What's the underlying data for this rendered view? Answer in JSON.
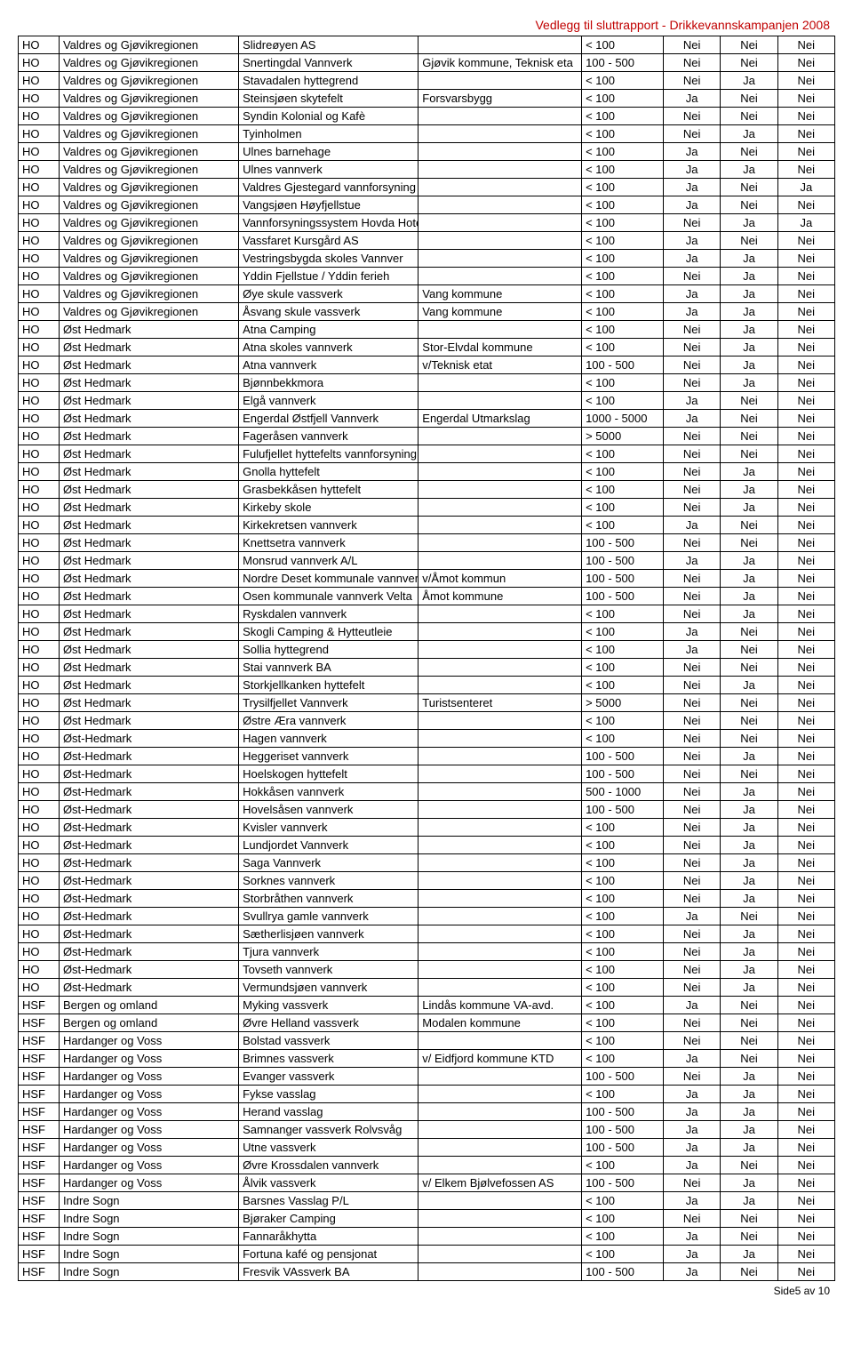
{
  "header": "Vedlegg til sluttrapport -  Drikkevannskampanjen 2008",
  "footer": "Side5 av 10",
  "rows": [
    [
      "HO",
      "Valdres og Gjøvikregionen",
      "Slidreøyen AS",
      "",
      "< 100",
      "Nei",
      "Nei",
      "Nei"
    ],
    [
      "HO",
      "Valdres og Gjøvikregionen",
      "Snertingdal Vannverk",
      "Gjøvik kommune, Teknisk eta",
      "100 - 500",
      "Nei",
      "Nei",
      "Nei"
    ],
    [
      "HO",
      "Valdres og Gjøvikregionen",
      "Stavadalen hyttegrend",
      "",
      "< 100",
      "Nei",
      "Ja",
      "Nei"
    ],
    [
      "HO",
      "Valdres og Gjøvikregionen",
      "Steinsjøen skytefelt",
      "Forsvarsbygg",
      "< 100",
      "Ja",
      "Nei",
      "Nei"
    ],
    [
      "HO",
      "Valdres og Gjøvikregionen",
      "Syndin Kolonial og Kafè",
      "",
      "< 100",
      "Nei",
      "Nei",
      "Nei"
    ],
    [
      "HO",
      "Valdres og Gjøvikregionen",
      "Tyinholmen",
      "",
      "< 100",
      "Nei",
      "Ja",
      "Nei"
    ],
    [
      "HO",
      "Valdres og Gjøvikregionen",
      "Ulnes barnehage",
      "",
      "< 100",
      "Ja",
      "Nei",
      "Nei"
    ],
    [
      "HO",
      "Valdres og Gjøvikregionen",
      "Ulnes vannverk",
      "",
      "< 100",
      "Ja",
      "Ja",
      "Nei"
    ],
    [
      "HO",
      "Valdres og Gjøvikregionen",
      "Valdres Gjestegard vannforsyning",
      "",
      "< 100",
      "Ja",
      "Nei",
      "Ja"
    ],
    [
      "HO",
      "Valdres og Gjøvikregionen",
      "Vangsjøen Høyfjellstue",
      "",
      "< 100",
      "Ja",
      "Nei",
      "Nei"
    ],
    [
      "HO",
      "Valdres og Gjøvikregionen",
      "Vannforsyningssystem Hovda Hotell",
      "",
      "< 100",
      "Nei",
      "Ja",
      "Ja"
    ],
    [
      "HO",
      "Valdres og Gjøvikregionen",
      "Vassfaret Kursgård AS",
      "",
      "< 100",
      "Ja",
      "Nei",
      "Nei"
    ],
    [
      "HO",
      "Valdres og Gjøvikregionen",
      "Vestringsbygda skoles Vannver",
      "",
      "< 100",
      "Ja",
      "Ja",
      "Nei"
    ],
    [
      "HO",
      "Valdres og Gjøvikregionen",
      "Yddin Fjellstue / Yddin ferieh",
      "",
      "< 100",
      "Nei",
      "Ja",
      "Nei"
    ],
    [
      "HO",
      "Valdres og Gjøvikregionen",
      "Øye skule vassverk",
      "Vang kommune",
      "< 100",
      "Ja",
      "Ja",
      "Nei"
    ],
    [
      "HO",
      "Valdres og Gjøvikregionen",
      "Åsvang skule vassverk",
      "Vang kommune",
      "< 100",
      "Ja",
      "Ja",
      "Nei"
    ],
    [
      "HO",
      "Øst Hedmark",
      "Atna Camping",
      "",
      "< 100",
      "Nei",
      "Ja",
      "Nei"
    ],
    [
      "HO",
      "Øst Hedmark",
      "Atna skoles vannverk",
      "Stor-Elvdal kommune",
      "< 100",
      "Nei",
      "Ja",
      "Nei"
    ],
    [
      "HO",
      "Øst Hedmark",
      "Atna vannverk",
      "v/Teknisk etat",
      "100 - 500",
      "Nei",
      "Ja",
      "Nei"
    ],
    [
      "HO",
      "Øst Hedmark",
      "Bjønnbekkmora",
      "",
      "< 100",
      "Nei",
      "Ja",
      "Nei"
    ],
    [
      "HO",
      "Øst Hedmark",
      "Elgå vannverk",
      "",
      "< 100",
      "Ja",
      "Nei",
      "Nei"
    ],
    [
      "HO",
      "Øst Hedmark",
      "Engerdal Østfjell Vannverk",
      "Engerdal Utmarkslag",
      "1000 - 5000",
      "Ja",
      "Nei",
      "Nei"
    ],
    [
      "HO",
      "Øst Hedmark",
      "Fageråsen vannverk",
      "",
      "> 5000",
      "Nei",
      "Nei",
      "Nei"
    ],
    [
      "HO",
      "Øst Hedmark",
      "Fulufjellet hyttefelts vannforsyning",
      "",
      "< 100",
      "Nei",
      "Nei",
      "Nei"
    ],
    [
      "HO",
      "Øst Hedmark",
      "Gnolla hyttefelt",
      "",
      "< 100",
      "Nei",
      "Ja",
      "Nei"
    ],
    [
      "HO",
      "Øst Hedmark",
      "Grasbekkåsen hyttefelt",
      "",
      "< 100",
      "Nei",
      "Ja",
      "Nei"
    ],
    [
      "HO",
      "Øst Hedmark",
      "Kirkeby skole",
      "",
      "< 100",
      "Nei",
      "Ja",
      "Nei"
    ],
    [
      "HO",
      "Øst Hedmark",
      "Kirkekretsen vannverk",
      "",
      "< 100",
      "Ja",
      "Nei",
      "Nei"
    ],
    [
      "HO",
      "Øst Hedmark",
      "Knettsetra vannverk",
      "",
      "100 - 500",
      "Nei",
      "Nei",
      "Nei"
    ],
    [
      "HO",
      "Øst Hedmark",
      "Monsrud vannverk A/L",
      "",
      "100 - 500",
      "Ja",
      "Ja",
      "Nei"
    ],
    [
      "HO",
      "Øst Hedmark",
      "Nordre Deset kommunale vannver",
      "v/Åmot kommun",
      "100 - 500",
      "Nei",
      "Ja",
      "Nei"
    ],
    [
      "HO",
      "Øst Hedmark",
      "Osen kommunale vannverk Velta",
      "Åmot kommune",
      "100 - 500",
      "Nei",
      "Ja",
      "Nei"
    ],
    [
      "HO",
      "Øst Hedmark",
      "Ryskdalen vannverk",
      "",
      "< 100",
      "Nei",
      "Ja",
      "Nei"
    ],
    [
      "HO",
      "Øst Hedmark",
      "Skogli Camping & Hytteutleie",
      "",
      "< 100",
      "Ja",
      "Nei",
      "Nei"
    ],
    [
      "HO",
      "Øst Hedmark",
      "Sollia hyttegrend",
      "",
      "< 100",
      "Ja",
      "Nei",
      "Nei"
    ],
    [
      "HO",
      "Øst Hedmark",
      "Stai vannverk BA",
      "",
      "< 100",
      "Nei",
      "Nei",
      "Nei"
    ],
    [
      "HO",
      "Øst Hedmark",
      "Storkjellkanken hyttefelt",
      "",
      "< 100",
      "Nei",
      "Ja",
      "Nei"
    ],
    [
      "HO",
      "Øst Hedmark",
      "Trysilfjellet Vannverk",
      "Turistsenteret",
      "> 5000",
      "Nei",
      "Nei",
      "Nei"
    ],
    [
      "HO",
      "Øst Hedmark",
      "Østre Æra vannverk",
      "",
      "< 100",
      "Nei",
      "Nei",
      "Nei"
    ],
    [
      "HO",
      "Øst-Hedmark",
      "Hagen vannverk",
      "",
      "< 100",
      "Nei",
      "Nei",
      "Nei"
    ],
    [
      "HO",
      "Øst-Hedmark",
      "Heggeriset vannverk",
      "",
      "100 - 500",
      "Nei",
      "Ja",
      "Nei"
    ],
    [
      "HO",
      "Øst-Hedmark",
      "Hoelskogen hyttefelt",
      "",
      "100 - 500",
      "Nei",
      "Nei",
      "Nei"
    ],
    [
      "HO",
      "Øst-Hedmark",
      "Hokkåsen vannverk",
      "",
      "500 - 1000",
      "Nei",
      "Ja",
      "Nei"
    ],
    [
      "HO",
      "Øst-Hedmark",
      "Hovelsåsen vannverk",
      "",
      "100 - 500",
      "Nei",
      "Ja",
      "Nei"
    ],
    [
      "HO",
      "Øst-Hedmark",
      "Kvisler vannverk",
      "",
      "< 100",
      "Nei",
      "Ja",
      "Nei"
    ],
    [
      "HO",
      "Øst-Hedmark",
      "Lundjordet Vannverk",
      "",
      "< 100",
      "Nei",
      "Ja",
      "Nei"
    ],
    [
      "HO",
      "Øst-Hedmark",
      "Saga Vannverk",
      "",
      "< 100",
      "Nei",
      "Ja",
      "Nei"
    ],
    [
      "HO",
      "Øst-Hedmark",
      "Sorknes vannverk",
      "",
      "< 100",
      "Nei",
      "Ja",
      "Nei"
    ],
    [
      "HO",
      "Øst-Hedmark",
      "Storbråthen vannverk",
      "",
      "< 100",
      "Nei",
      "Ja",
      "Nei"
    ],
    [
      "HO",
      "Øst-Hedmark",
      "Svullrya gamle vannverk",
      "",
      "< 100",
      "Ja",
      "Nei",
      "Nei"
    ],
    [
      "HO",
      "Øst-Hedmark",
      "Sætherlisjøen vannverk",
      "",
      "< 100",
      "Nei",
      "Ja",
      "Nei"
    ],
    [
      "HO",
      "Øst-Hedmark",
      "Tjura vannverk",
      "",
      "< 100",
      "Nei",
      "Ja",
      "Nei"
    ],
    [
      "HO",
      "Øst-Hedmark",
      "Tovseth vannverk",
      "",
      "< 100",
      "Nei",
      "Ja",
      "Nei"
    ],
    [
      "HO",
      "Øst-Hedmark",
      "Vermundsjøen vannverk",
      "",
      "< 100",
      "Nei",
      "Ja",
      "Nei"
    ],
    [
      "HSF",
      "Bergen og omland",
      "Myking vassverk",
      "Lindås kommune VA-avd.",
      "< 100",
      "Ja",
      "Nei",
      "Nei"
    ],
    [
      "HSF",
      "Bergen og omland",
      "Øvre Helland vassverk",
      "Modalen kommune",
      "< 100",
      "Nei",
      "Nei",
      "Nei"
    ],
    [
      "HSF",
      "Hardanger og Voss",
      "Bolstad vassverk",
      "",
      "< 100",
      "Nei",
      "Nei",
      "Nei"
    ],
    [
      "HSF",
      "Hardanger og Voss",
      "Brimnes vassverk",
      "v/ Eidfjord kommune KTD",
      "< 100",
      "Ja",
      "Nei",
      "Nei"
    ],
    [
      "HSF",
      "Hardanger og Voss",
      "Evanger vassverk",
      "",
      "100 - 500",
      "Nei",
      "Ja",
      "Nei"
    ],
    [
      "HSF",
      "Hardanger og Voss",
      "Fykse vasslag",
      "",
      "< 100",
      "Ja",
      "Ja",
      "Nei"
    ],
    [
      "HSF",
      "Hardanger og Voss",
      "Herand vasslag",
      "",
      "100 - 500",
      "Ja",
      "Ja",
      "Nei"
    ],
    [
      "HSF",
      "Hardanger og Voss",
      "Samnanger vassverk Rolvsvåg",
      "",
      "100 - 500",
      "Ja",
      "Ja",
      "Nei"
    ],
    [
      "HSF",
      "Hardanger og Voss",
      "Utne vassverk",
      "",
      "100 - 500",
      "Ja",
      "Ja",
      "Nei"
    ],
    [
      "HSF",
      "Hardanger og Voss",
      "Øvre Krossdalen vannverk",
      "",
      "< 100",
      "Ja",
      "Nei",
      "Nei"
    ],
    [
      "HSF",
      "Hardanger og Voss",
      "Ålvik vassverk",
      "v/ Elkem Bjølvefossen AS",
      "100 - 500",
      "Nei",
      "Ja",
      "Nei"
    ],
    [
      "HSF",
      "Indre Sogn",
      "Barsnes Vasslag P/L",
      "",
      "< 100",
      "Ja",
      "Ja",
      "Nei"
    ],
    [
      "HSF",
      "Indre Sogn",
      "Bjøraker Camping",
      "",
      "< 100",
      "Nei",
      "Nei",
      "Nei"
    ],
    [
      "HSF",
      "Indre Sogn",
      "Fannaråkhytta",
      "",
      "< 100",
      "Ja",
      "Nei",
      "Nei"
    ],
    [
      "HSF",
      "Indre Sogn",
      "Fortuna kafé og pensjonat",
      "",
      "< 100",
      "Ja",
      "Ja",
      "Nei"
    ],
    [
      "HSF",
      "Indre Sogn",
      "Fresvik VAssverk BA",
      "",
      "100 - 500",
      "Ja",
      "Nei",
      "Nei"
    ]
  ]
}
